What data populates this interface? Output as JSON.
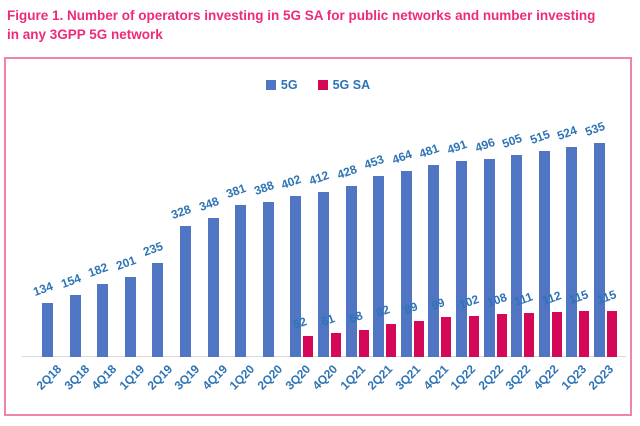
{
  "title": {
    "text": "Figure 1. Number of operators investing in 5G SA for public networks and number investing in any 3GPP 5G network"
  },
  "colors": {
    "title_pink": "#EE2A7B",
    "frame_border_pink": "#F283AC",
    "bar_blue": "#4F75C3",
    "bar_crimson": "#D40857",
    "label_blue": "#2E74B5",
    "axis_gray": "#D9D9D9"
  },
  "legend": {
    "items": [
      {
        "label": "5G",
        "color": "#4F75C3"
      },
      {
        "label": "5G SA",
        "color": "#D40857"
      }
    ]
  },
  "chart_data": {
    "type": "bar",
    "title": "Figure 1. Number of operators investing in 5G SA for public networks and number investing in any 3GPP 5G network",
    "categories": [
      "2Q18",
      "3Q18",
      "4Q18",
      "1Q19",
      "2Q19",
      "3Q19",
      "4Q19",
      "1Q20",
      "2Q20",
      "3Q20",
      "4Q20",
      "1Q21",
      "2Q21",
      "3Q21",
      "4Q21",
      "1Q22",
      "2Q22",
      "3Q22",
      "4Q22",
      "1Q23",
      "2Q23"
    ],
    "series": [
      {
        "name": "5G",
        "color": "#4F75C3",
        "values": [
          134,
          154,
          182,
          201,
          235,
          328,
          348,
          381,
          388,
          402,
          412,
          428,
          453,
          464,
          481,
          491,
          496,
          505,
          515,
          524,
          535
        ]
      },
      {
        "name": "5G SA",
        "color": "#D40857",
        "values": [
          null,
          null,
          null,
          null,
          null,
          null,
          null,
          null,
          null,
          52,
          61,
          68,
          82,
          89,
          99,
          102,
          108,
          111,
          112,
          115,
          115
        ]
      }
    ],
    "xlabel": "",
    "ylabel": "",
    "ylim": [
      0,
      560
    ],
    "grid": false,
    "legend_position": "top-center",
    "data_labels": true
  }
}
